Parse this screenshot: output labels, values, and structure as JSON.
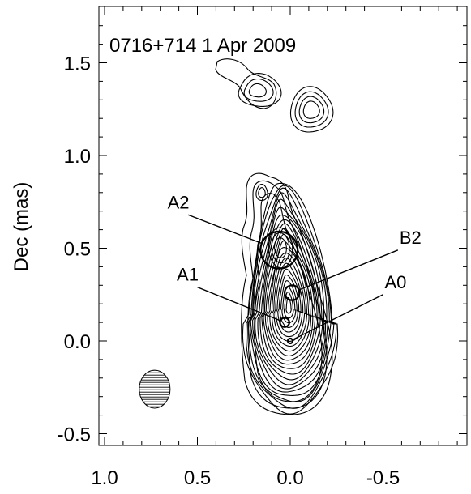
{
  "chart_data": {
    "type": "contour",
    "title": "0716+714  1 Apr 2009",
    "xlabel": "",
    "ylabel": "Dec (mas)",
    "xlim": [
      1.0,
      -1.0
    ],
    "ylim": [
      -0.5,
      1.8
    ],
    "x_ticks": [
      1.0,
      0.5,
      0.0,
      -0.5
    ],
    "x_tick_labels": [
      "1.0",
      "0.5",
      "0.0",
      "-0.5"
    ],
    "y_ticks": [
      1.5,
      1.0,
      0.5,
      0.0,
      -0.5
    ],
    "y_tick_labels": [
      "1.5",
      "1.0",
      "0.5",
      "0.0",
      "-0.5"
    ],
    "components": [
      {
        "name": "A0",
        "x": 0.0,
        "y": 0.0,
        "radius": 0.012,
        "label_x": -0.5,
        "label_y": 0.25
      },
      {
        "name": "A1",
        "x": 0.03,
        "y": 0.1,
        "radius": 0.025,
        "label_x": 0.5,
        "label_y": 0.29
      },
      {
        "name": "B2",
        "x": -0.01,
        "y": 0.26,
        "radius": 0.04,
        "label_x": -0.58,
        "label_y": 0.49
      },
      {
        "name": "A2",
        "x": 0.06,
        "y": 0.49,
        "radius": 0.1,
        "label_x": 0.55,
        "label_y": 0.68
      }
    ],
    "beam": {
      "x": 0.73,
      "y": -0.26,
      "bmaj_mas": 0.2,
      "bmin_mas": 0.14
    }
  }
}
